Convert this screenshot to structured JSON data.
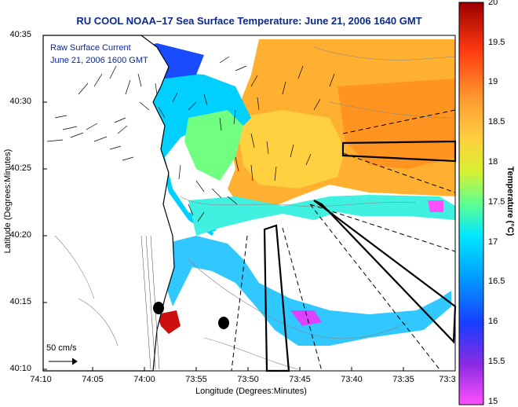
{
  "map": {
    "title": "RU COOL  NOAA–17  Sea Surface Temperature:  June 21, 2006 1640 GMT",
    "xlabel": "Longitude (Degrees:Minutes)",
    "ylabel": "Latitude (Degrees:Minutes)",
    "xticks": [
      "74:10",
      "74:05",
      "74:00",
      "73:55",
      "73:50",
      "73:45",
      "73:40",
      "73:35",
      "73:3"
    ],
    "yticks": [
      "40:35",
      "40:30",
      "40:25",
      "40:20",
      "40:15",
      "40:10"
    ],
    "legend_line1": "Raw Surface Current",
    "legend_line2": "June 21, 2006 1600 GMT",
    "scale_label": "50 cm/s"
  },
  "colorbar": {
    "label": "Temperature (°C)",
    "ticks": [
      "20",
      "19.5",
      "19",
      "18.5",
      "18",
      "17.5",
      "17",
      "16.5",
      "16",
      "15.5",
      "15"
    ],
    "range": [
      15,
      20
    ]
  },
  "colors": {
    "title": "#0b2a8a",
    "land": "#ffffff",
    "coastline": "#000000",
    "bathymetry": "#888888",
    "vectors": "#000000"
  }
}
